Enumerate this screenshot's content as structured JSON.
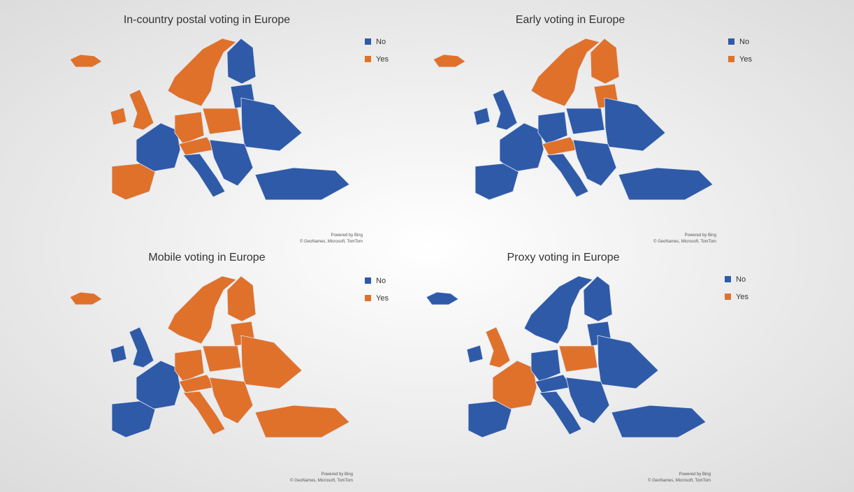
{
  "panels": [
    {
      "title": "In-country postal voting in Europe"
    },
    {
      "title": "Early voting in Europe"
    },
    {
      "title": "Mobile voting in Europe"
    },
    {
      "title": "Proxy voting in Europe"
    }
  ],
  "legend": [
    {
      "label": "No",
      "color": "#2f5aa8"
    },
    {
      "label": "Yes",
      "color": "#e0712b"
    }
  ],
  "attribution": [
    "Powered by Bing",
    "© GeoNames, Microsoft, TomTom"
  ]
}
